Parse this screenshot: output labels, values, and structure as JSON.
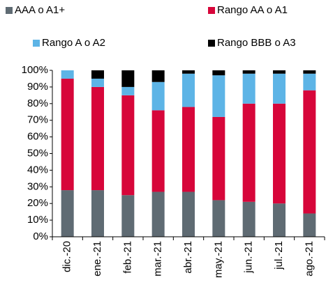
{
  "chart_data": {
    "type": "stacked_bar",
    "categories": [
      "dic.-20",
      "ene.-21",
      "feb.-21",
      "mar.-21",
      "abr.-21",
      "may.-21",
      "jun.-21",
      "jul.-21",
      "ago.-21"
    ],
    "series": [
      {
        "name": "AAA o A1+",
        "color": "#5f6b73",
        "values": [
          28,
          28,
          25,
          27,
          27,
          22,
          21,
          20,
          14
        ]
      },
      {
        "name": "Rango AA o A1",
        "color": "#d7063a",
        "values": [
          67,
          62,
          60,
          49,
          51,
          50,
          59,
          60,
          74
        ]
      },
      {
        "name": "Rango A o A2",
        "color": "#5db4e6",
        "values": [
          5,
          5,
          5,
          17,
          20,
          25,
          18,
          18,
          10
        ]
      },
      {
        "name": "Rango BBB o A3",
        "color": "#000000",
        "values": [
          0,
          5,
          10,
          7,
          2,
          3,
          2,
          2,
          2
        ]
      }
    ],
    "ylim": [
      0,
      100
    ],
    "yticks": [
      {
        "value": 0,
        "label": "0%"
      },
      {
        "value": 10,
        "label": "10%"
      },
      {
        "value": 20,
        "label": "20%"
      },
      {
        "value": 30,
        "label": "30%"
      },
      {
        "value": 40,
        "label": "40%"
      },
      {
        "value": 50,
        "label": "50%"
      },
      {
        "value": 60,
        "label": "60%"
      },
      {
        "value": 70,
        "label": "70%"
      },
      {
        "value": 80,
        "label": "80%"
      },
      {
        "value": 90,
        "label": "90%"
      },
      {
        "value": 100,
        "label": "100%"
      }
    ]
  }
}
